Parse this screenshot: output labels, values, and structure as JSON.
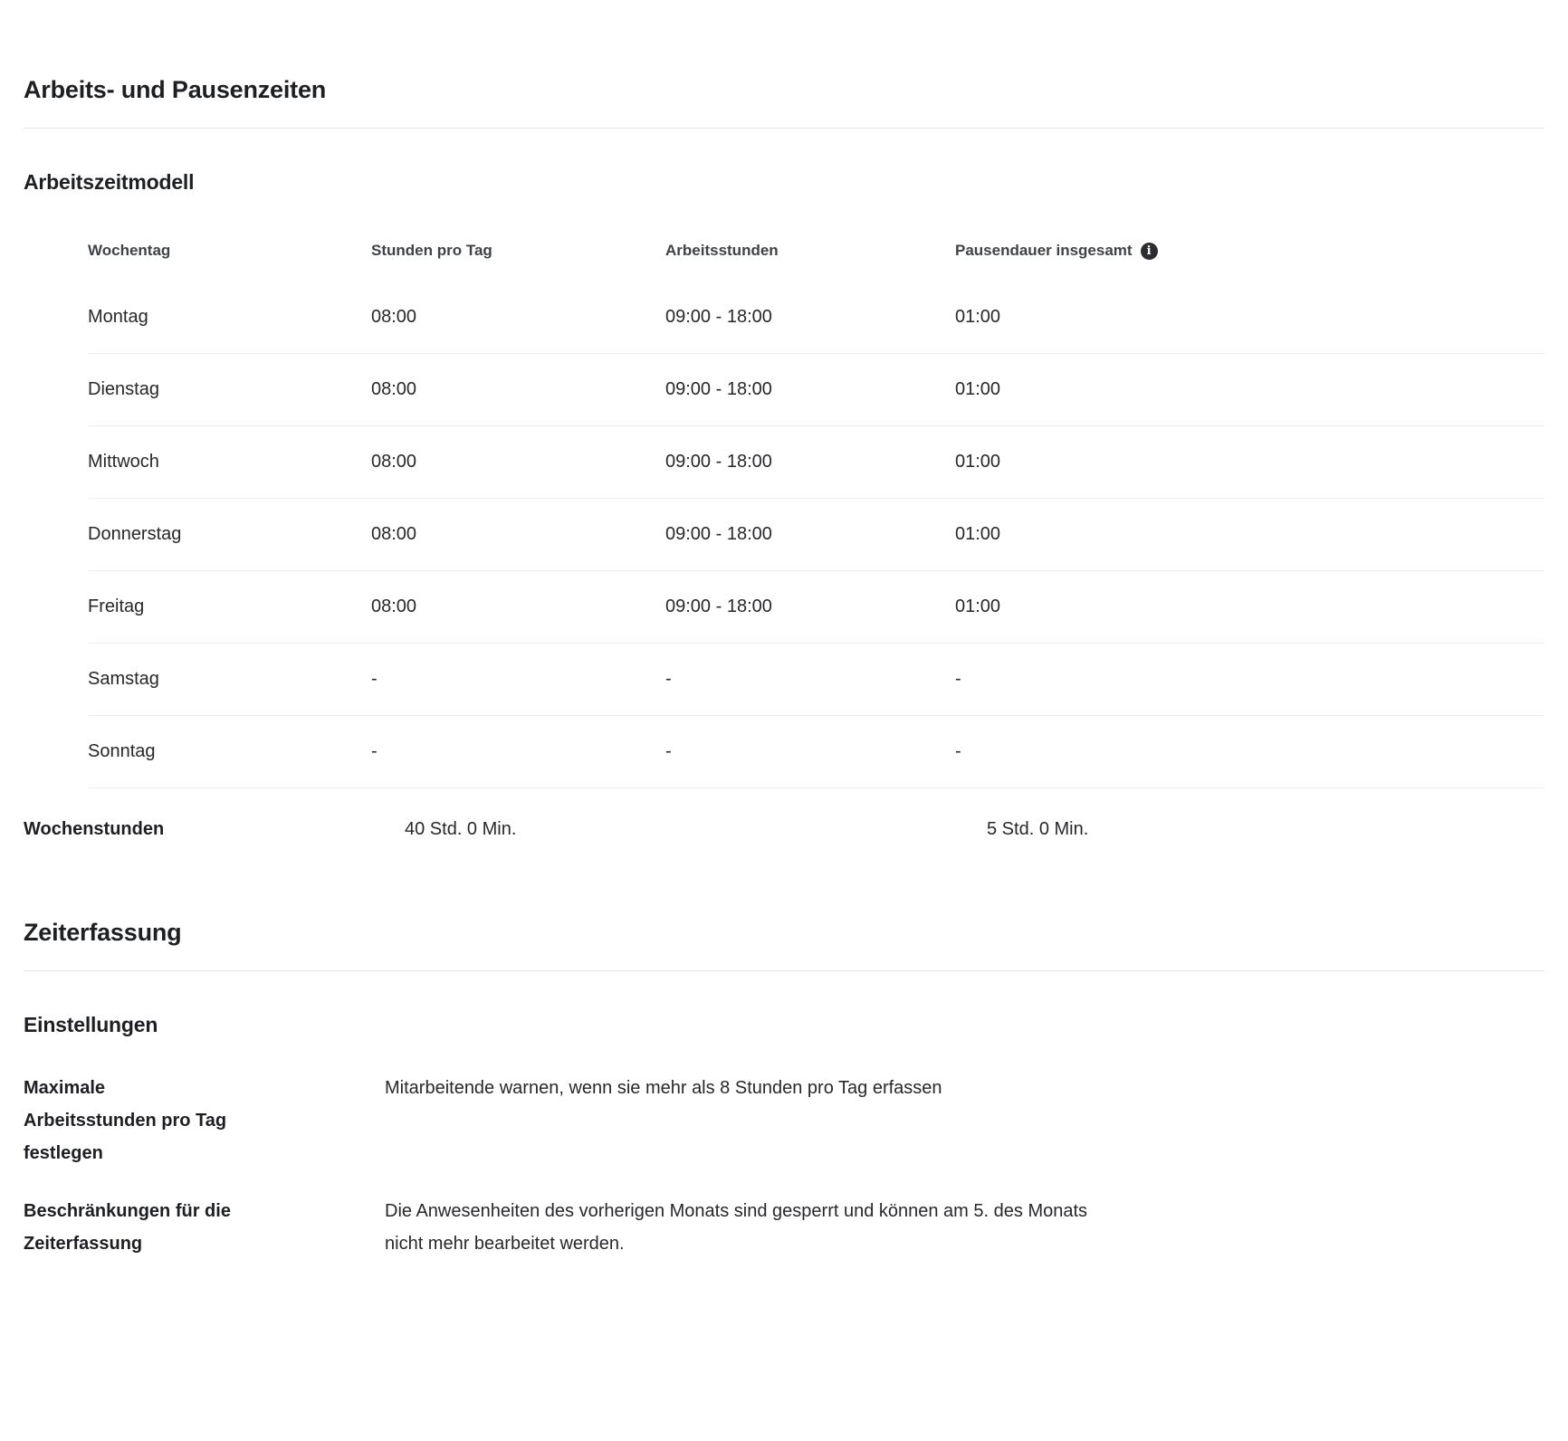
{
  "arbeitszeiten": {
    "title": "Arbeits- und Pausenzeiten",
    "model": {
      "title": "Arbeitszeitmodell",
      "columns": [
        "Wochentag",
        "Stunden pro Tag",
        "Arbeitsstunden",
        "Pausendauer insgesamt"
      ],
      "info_icon_glyph": "i",
      "rows": [
        {
          "day": "Montag",
          "hours_per_day": "08:00",
          "working_hours": "09:00 - 18:00",
          "break_total": "01:00"
        },
        {
          "day": "Dienstag",
          "hours_per_day": "08:00",
          "working_hours": "09:00 - 18:00",
          "break_total": "01:00"
        },
        {
          "day": "Mittwoch",
          "hours_per_day": "08:00",
          "working_hours": "09:00 - 18:00",
          "break_total": "01:00"
        },
        {
          "day": "Donnerstag",
          "hours_per_day": "08:00",
          "working_hours": "09:00 - 18:00",
          "break_total": "01:00"
        },
        {
          "day": "Freitag",
          "hours_per_day": "08:00",
          "working_hours": "09:00 - 18:00",
          "break_total": "01:00"
        },
        {
          "day": "Samstag",
          "hours_per_day": "-",
          "working_hours": "-",
          "break_total": "-"
        },
        {
          "day": "Sonntag",
          "hours_per_day": "-",
          "working_hours": "-",
          "break_total": "-"
        }
      ],
      "summary": {
        "label": "Wochenstunden",
        "weekly_work_hours": "40 Std. 0 Min.",
        "weekly_break_hours": "5 Std. 0 Min."
      }
    }
  },
  "zeiterfassung": {
    "title": "Zeiterfassung",
    "settings_title": "Einstellungen",
    "settings": [
      {
        "label": "Maximale\nArbeitsstunden pro Tag\nfestlegen",
        "value": "Mitarbeitende warnen, wenn sie mehr als 8 Stunden pro Tag erfassen"
      },
      {
        "label": "Beschränkungen für die\nZeiterfassung",
        "value": "Die Anwesenheiten des vorherigen Monats sind gesperrt und können am 5. des Monats\nnicht mehr bearbeitet werden."
      }
    ]
  },
  "colors": {
    "heading": "#1d1f22",
    "body_text": "#26282b",
    "table_header_text": "#3f4246",
    "divider": "#e3e3e3",
    "row_divider": "#ececec",
    "info_icon_bg": "#2b2d30"
  }
}
